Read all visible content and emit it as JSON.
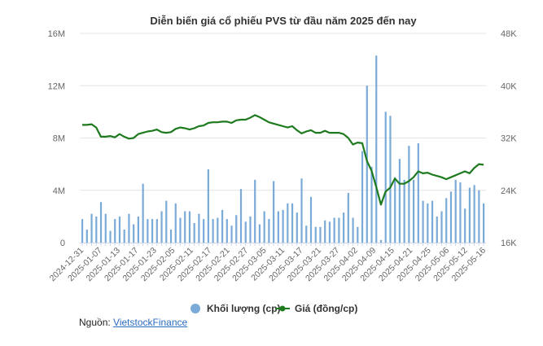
{
  "chart_data": {
    "type": "bar+line",
    "title": "Diễn biến giá cổ phiếu PVS từ đầu năm 2025 đến nay",
    "left_axis": {
      "ylim": [
        0,
        16
      ],
      "ticks": [
        "0",
        "4M",
        "8M",
        "12M",
        "16M"
      ],
      "tick_values": [
        0,
        4,
        8,
        12,
        16
      ],
      "unit": "M"
    },
    "right_axis": {
      "ylim": [
        16,
        48
      ],
      "ticks": [
        "16K",
        "24K",
        "32K",
        "40K",
        "48K"
      ],
      "tick_values": [
        16,
        24,
        32,
        40,
        48
      ],
      "unit": "K"
    },
    "x_tick_labels": [
      "2024-12-31",
      "2025-01-07",
      "2025-01-13",
      "2025-01-17",
      "2025-01-23",
      "2025-02-05",
      "2025-02-11",
      "2025-02-17",
      "2025-02-21",
      "2025-02-27",
      "2025-03-05",
      "2025-03-11",
      "2025-03-17",
      "2025-03-21",
      "2025-03-27",
      "2025-04-02",
      "2025-04-09",
      "2025-04-15",
      "2025-04-21",
      "2025-04-25",
      "2025-05-06",
      "2025-05-12",
      "2025-05-16"
    ],
    "grid": true,
    "legend_placement": "bottom",
    "series": [
      {
        "name": "Khối lượng (cp)",
        "type": "bar",
        "axis": "left",
        "color": "#7aaad8",
        "values": [
          1.8,
          1.0,
          2.2,
          2.0,
          3.1,
          2.2,
          0.9,
          1.8,
          2.0,
          1.0,
          2.2,
          1.4,
          2.0,
          4.5,
          1.8,
          1.8,
          1.8,
          2.4,
          3.2,
          1.0,
          3.0,
          1.9,
          2.4,
          2.4,
          1.5,
          2.2,
          1.8,
          5.6,
          1.8,
          1.9,
          2.5,
          1.8,
          1.3,
          2.1,
          4.1,
          1.6,
          2.0,
          4.8,
          1.4,
          2.4,
          1.8,
          4.7,
          2.4,
          2.5,
          3.0,
          3.0,
          2.3,
          4.9,
          1.3,
          3.5,
          1.2,
          1.2,
          1.7,
          1.6,
          1.9,
          1.9,
          2.3,
          3.8,
          1.9,
          1.2,
          7.0,
          12.0,
          5.8,
          14.3,
          0.2,
          10.0,
          9.7,
          5.0,
          6.4,
          4.8,
          7.4,
          4.8,
          7.6,
          3.2,
          3.0,
          3.2,
          2.0,
          2.4,
          3.4,
          3.9,
          4.8,
          4.6,
          2.6,
          4.2,
          4.4,
          4.0,
          3.0
        ]
      },
      {
        "name": "Giá (đồng/cp)",
        "type": "line",
        "axis": "right",
        "color": "#1e7a1e",
        "values": [
          34.0,
          34.0,
          34.1,
          33.6,
          32.2,
          32.2,
          32.3,
          32.1,
          32.6,
          32.2,
          31.9,
          32.0,
          32.6,
          32.8,
          33.0,
          33.1,
          33.3,
          32.9,
          32.8,
          32.9,
          33.4,
          33.6,
          33.5,
          33.3,
          33.5,
          33.8,
          33.9,
          34.3,
          34.4,
          34.4,
          34.5,
          34.5,
          34.3,
          34.7,
          34.8,
          34.8,
          35.1,
          35.5,
          35.2,
          34.8,
          34.4,
          34.2,
          34.0,
          33.8,
          33.6,
          33.8,
          33.2,
          32.7,
          33.0,
          33.2,
          32.8,
          32.8,
          33.1,
          32.8,
          32.8,
          32.8,
          32.6,
          32.0,
          31.0,
          31.3,
          31.2,
          28.5,
          27.0,
          24.5,
          21.8,
          23.8,
          24.4,
          25.8,
          25.0,
          25.0,
          25.4,
          26.0,
          26.9,
          26.6,
          26.7,
          26.4,
          26.2,
          26.0,
          25.7,
          26.0,
          26.3,
          26.6,
          26.9,
          26.6,
          27.4,
          28.0,
          27.9
        ]
      }
    ]
  },
  "source": {
    "label": "Nguồn: ",
    "link": "VietstockFinance"
  }
}
